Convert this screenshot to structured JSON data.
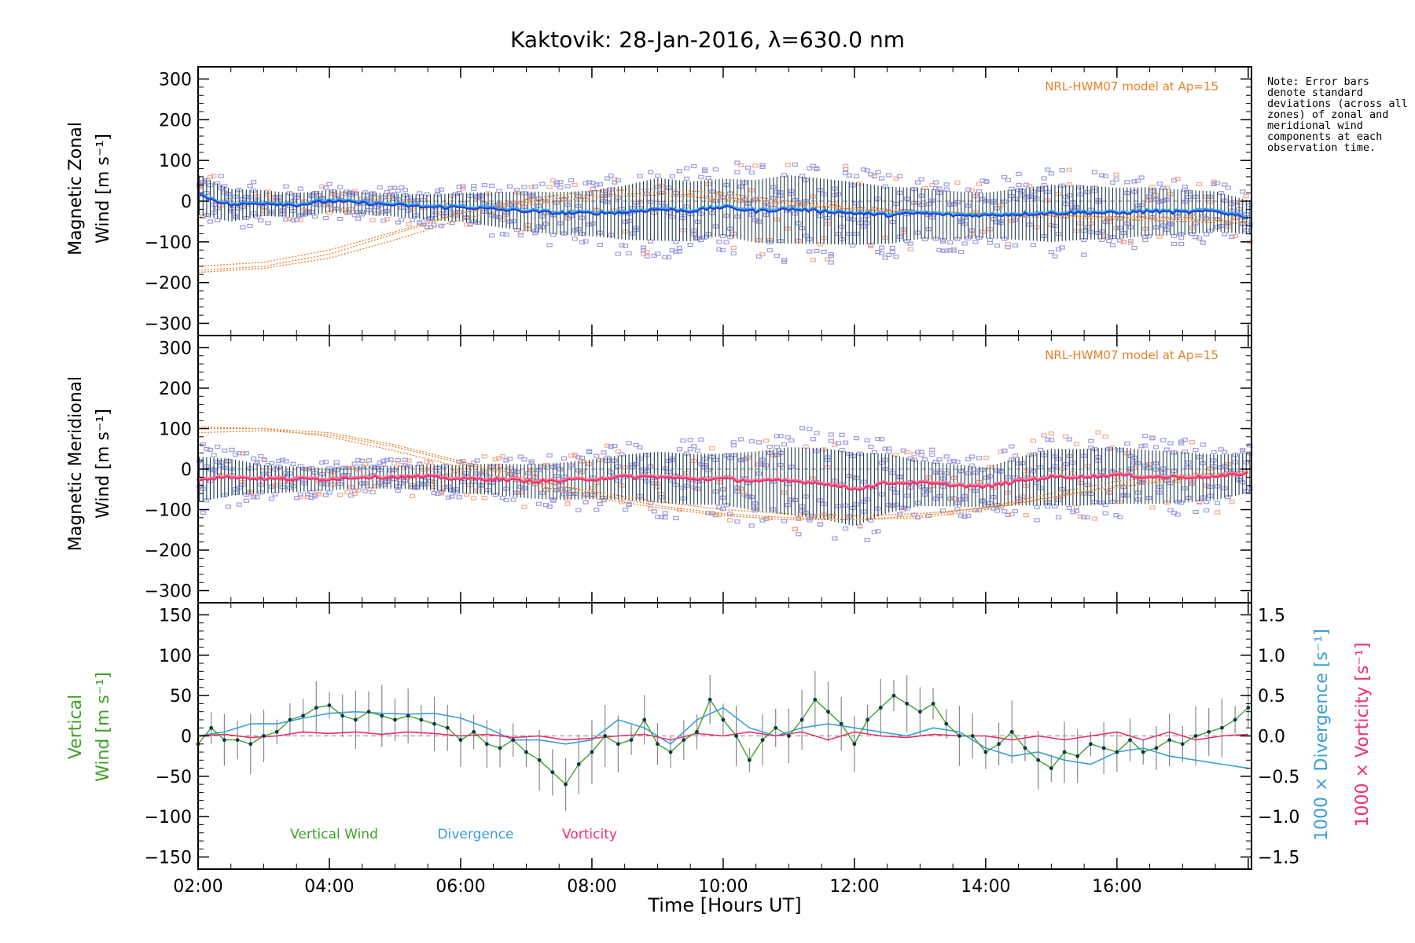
{
  "figure": {
    "title": "Kaktovik: 28-Jan-2016, λ=630.0 nm",
    "note": "Note: Error bars denote standard deviations (across all zones) of zonal and meridional wind components at each observation time."
  },
  "chart_data": [
    {
      "id": "zonal",
      "type": "scatter",
      "ylabel_line1": "Magnetic Zonal",
      "ylabel_line2": "Wind [m s⁻¹]",
      "model_label": "NRL-HWM07 model at Ap=15",
      "xlim": [
        2.0,
        18.05
      ],
      "ylim": [
        -330,
        330
      ],
      "yticks": [
        -300,
        -200,
        -100,
        0,
        100,
        200,
        300
      ],
      "colors": {
        "mean": "#1f3fd6",
        "mean_light": "#36a7e6",
        "scatter": "#9c9ce0",
        "scatter2": "#f4a98f",
        "model": "#e8802a"
      },
      "mean_series": {
        "name": "",
        "x": [
          2.0,
          2.5,
          3.0,
          3.5,
          4.0,
          4.5,
          5.0,
          5.5,
          6.0,
          6.5,
          7.0,
          7.5,
          8.0,
          8.5,
          9.0,
          9.5,
          10.0,
          10.5,
          11.0,
          11.5,
          12.0,
          12.5,
          13.0,
          13.5,
          14.0,
          14.5,
          15.0,
          15.5,
          16.0,
          16.5,
          17.0,
          17.5,
          18.0
        ],
        "y": [
          15,
          -10,
          -5,
          -10,
          0,
          -5,
          -10,
          -15,
          -15,
          -20,
          -25,
          -30,
          -30,
          -28,
          -20,
          -25,
          -15,
          -25,
          -20,
          -25,
          -30,
          -35,
          -30,
          -35,
          -35,
          -32,
          -30,
          -28,
          -30,
          -25,
          -28,
          -25,
          -40
        ]
      },
      "model_curves": [
        {
          "x": [
            2.0,
            3.0,
            4.0,
            5.0,
            6.0,
            7.0,
            8.0,
            9.0,
            10.0,
            11.0,
            12.0,
            13.0,
            14.0,
            15.0,
            16.0,
            17.0,
            18.0
          ],
          "y": [
            -170,
            -160,
            -130,
            -80,
            -30,
            5,
            25,
            30,
            20,
            0,
            -15,
            -25,
            -30,
            -35,
            -40,
            -45,
            -50
          ]
        },
        {
          "x": [
            2.0,
            3.0,
            4.0,
            5.0,
            6.0,
            7.0,
            8.0,
            9.0,
            10.0,
            11.0,
            12.0,
            13.0,
            14.0,
            15.0,
            16.0,
            17.0,
            18.0
          ],
          "y": [
            -160,
            -150,
            -120,
            -75,
            -30,
            0,
            15,
            20,
            10,
            -5,
            -20,
            -28,
            -32,
            -35,
            -38,
            -40,
            -45
          ]
        },
        {
          "x": [
            2.0,
            3.0,
            4.0,
            5.0,
            6.0,
            7.0,
            8.0,
            9.0,
            10.0,
            11.0,
            12.0,
            13.0,
            14.0,
            15.0,
            16.0,
            17.0,
            18.0
          ],
          "y": [
            -175,
            -165,
            -140,
            -95,
            -45,
            -10,
            10,
            15,
            5,
            -10,
            -20,
            -30,
            -35,
            -40,
            -45,
            -50,
            -55
          ]
        }
      ],
      "spread": [
        {
          "x": [
            2.0,
            3.0,
            4.0,
            5.0,
            6.0,
            7.0,
            8.0,
            9.0,
            10.0,
            11.0,
            12.0,
            13.0,
            14.0,
            15.0,
            16.0,
            17.0,
            18.0
          ],
          "halfwidth": [
            70,
            45,
            40,
            40,
            50,
            70,
            80,
            110,
            100,
            120,
            110,
            90,
            80,
            100,
            90,
            80,
            60
          ]
        }
      ]
    },
    {
      "id": "meridional",
      "type": "scatter",
      "ylabel_line1": "Magnetic Meridional",
      "ylabel_line2": "Wind [m s⁻¹]",
      "model_label": "NRL-HWM07 model at Ap=15",
      "xlim": [
        2.0,
        18.05
      ],
      "ylim": [
        -330,
        330
      ],
      "yticks": [
        -300,
        -200,
        -100,
        0,
        100,
        200,
        300
      ],
      "colors": {
        "mean": "#f0306a",
        "mean_light": "#ff7a9c",
        "scatter": "#9c9ce0",
        "scatter2": "#f4a98f",
        "model": "#e8802a"
      },
      "mean_series": {
        "name": "",
        "x": [
          2.0,
          2.5,
          3.0,
          3.5,
          4.0,
          4.5,
          5.0,
          5.5,
          6.0,
          6.5,
          7.0,
          7.5,
          8.0,
          8.5,
          9.0,
          9.5,
          10.0,
          10.5,
          11.0,
          11.5,
          12.0,
          12.5,
          13.0,
          13.5,
          14.0,
          14.5,
          15.0,
          15.5,
          16.0,
          16.5,
          17.0,
          17.5,
          18.0
        ],
        "y": [
          -25,
          -20,
          -25,
          -25,
          -25,
          -20,
          -20,
          -20,
          -25,
          -25,
          -30,
          -30,
          -25,
          -20,
          -20,
          -25,
          -25,
          -30,
          -30,
          -35,
          -50,
          -35,
          -35,
          -40,
          -45,
          -30,
          -20,
          -20,
          -15,
          -20,
          -20,
          -20,
          -10
        ]
      },
      "model_curves": [
        {
          "x": [
            2.0,
            3.0,
            4.0,
            5.0,
            6.0,
            7.0,
            8.0,
            9.0,
            10.0,
            11.0,
            12.0,
            13.0,
            14.0,
            15.0,
            16.0,
            17.0,
            18.0
          ],
          "y": [
            100,
            100,
            90,
            60,
            20,
            -20,
            -60,
            -90,
            -110,
            -120,
            -125,
            -120,
            -100,
            -70,
            -40,
            -20,
            -10
          ]
        },
        {
          "x": [
            2.0,
            3.0,
            4.0,
            5.0,
            6.0,
            7.0,
            8.0,
            9.0,
            10.0,
            11.0,
            12.0,
            13.0,
            14.0,
            15.0,
            16.0,
            17.0,
            18.0
          ],
          "y": [
            90,
            95,
            85,
            55,
            15,
            -25,
            -55,
            -80,
            -100,
            -110,
            -115,
            -110,
            -95,
            -70,
            -45,
            -25,
            -15
          ]
        },
        {
          "x": [
            2.0,
            3.0,
            4.0,
            5.0,
            6.0,
            7.0,
            8.0,
            9.0,
            10.0,
            11.0,
            12.0,
            13.0,
            14.0,
            15.0,
            16.0,
            17.0,
            18.0
          ],
          "y": [
            105,
            100,
            80,
            45,
            5,
            -35,
            -70,
            -95,
            -115,
            -125,
            -125,
            -115,
            -95,
            -60,
            -30,
            -15,
            -5
          ]
        }
      ],
      "spread": [
        {
          "x": [
            2.0,
            3.0,
            4.0,
            5.0,
            6.0,
            7.0,
            8.0,
            9.0,
            10.0,
            11.0,
            12.0,
            13.0,
            14.0,
            15.0,
            16.0,
            17.0,
            18.0
          ],
          "halfwidth": [
            80,
            50,
            40,
            40,
            50,
            60,
            70,
            90,
            90,
            120,
            130,
            80,
            70,
            100,
            100,
            90,
            70
          ]
        }
      ]
    },
    {
      "id": "vertical",
      "type": "line",
      "ylabel_line1": "Vertical",
      "ylabel_line2": "Wind [m s⁻¹]",
      "ylabel_right1": "1000 × Divergence [s⁻¹]",
      "ylabel_right2": "1000 × Vorticity [s⁻¹]",
      "xlabel": "Time [Hours UT]",
      "xlim": [
        2.0,
        18.05
      ],
      "ylim": [
        -165,
        165
      ],
      "yticks": [
        -150,
        -100,
        -50,
        0,
        50,
        100,
        150
      ],
      "y2lim": [
        -1.65,
        1.65
      ],
      "y2ticks": [
        -1.5,
        -1.0,
        -0.5,
        0.0,
        0.5,
        1.0,
        1.5
      ],
      "y2ticklabels": [
        "−1.5",
        "−1.0",
        "−0.5",
        "0.0",
        "0.5",
        "1.0",
        "1.5"
      ],
      "xticks": [
        2,
        4,
        6,
        8,
        10,
        12,
        14,
        16
      ],
      "xticklabels": [
        "02:00",
        "04:00",
        "06:00",
        "08:00",
        "10:00",
        "12:00",
        "14:00",
        "16:00"
      ],
      "legend": [
        "Vertical Wind",
        "Divergence",
        "Vorticity"
      ],
      "colors": {
        "vertical": "#3fa02a",
        "divergence": "#3a9fd6",
        "vorticity": "#f0306a",
        "points": "#0b3a4a"
      },
      "series": [
        {
          "name": "Vertical Wind",
          "x": [
            2.0,
            2.2,
            2.4,
            2.6,
            2.8,
            3.0,
            3.2,
            3.4,
            3.6,
            3.8,
            4.0,
            4.2,
            4.4,
            4.6,
            4.8,
            5.0,
            5.2,
            5.4,
            5.6,
            5.8,
            6.0,
            6.2,
            6.4,
            6.6,
            6.8,
            7.0,
            7.2,
            7.4,
            7.6,
            7.8,
            8.0,
            8.2,
            8.4,
            8.6,
            8.8,
            9.0,
            9.2,
            9.4,
            9.6,
            9.8,
            10.0,
            10.2,
            10.4,
            10.6,
            10.8,
            11.0,
            11.2,
            11.4,
            11.6,
            11.8,
            12.0,
            12.2,
            12.4,
            12.6,
            12.8,
            13.0,
            13.2,
            13.4,
            13.6,
            13.8,
            14.0,
            14.2,
            14.4,
            14.6,
            14.8,
            15.0,
            15.2,
            15.4,
            15.6,
            15.8,
            16.0,
            16.2,
            16.4,
            16.6,
            16.8,
            17.0,
            17.2,
            17.4,
            17.6,
            17.8,
            18.0
          ],
          "y": [
            -10,
            10,
            -5,
            -5,
            -10,
            0,
            5,
            20,
            25,
            35,
            38,
            25,
            20,
            30,
            25,
            20,
            25,
            20,
            15,
            10,
            -5,
            5,
            -10,
            -15,
            -5,
            -20,
            -30,
            -45,
            -60,
            -35,
            -20,
            0,
            -10,
            -5,
            20,
            -10,
            -20,
            -5,
            5,
            45,
            20,
            0,
            -30,
            -5,
            10,
            0,
            20,
            45,
            30,
            15,
            -10,
            20,
            35,
            50,
            40,
            30,
            40,
            15,
            0,
            0,
            -20,
            -10,
            5,
            -15,
            -30,
            -40,
            -20,
            -25,
            -10,
            -15,
            -20,
            -5,
            -20,
            -15,
            -5,
            -10,
            0,
            5,
            10,
            20,
            35
          ]
        },
        {
          "name": "Divergence",
          "x": [
            2.0,
            2.4,
            2.8,
            3.2,
            3.6,
            4.0,
            4.4,
            4.8,
            5.2,
            5.6,
            6.0,
            6.4,
            6.8,
            7.2,
            7.6,
            8.0,
            8.4,
            8.8,
            9.2,
            9.6,
            10.0,
            10.4,
            10.8,
            11.2,
            11.6,
            12.0,
            12.4,
            12.8,
            13.2,
            13.6,
            14.0,
            14.4,
            14.8,
            15.2,
            15.6,
            16.0,
            16.4,
            16.8,
            17.2,
            17.6,
            18.0
          ],
          "y": [
            0.0,
            0.05,
            0.15,
            0.15,
            0.22,
            0.28,
            0.3,
            0.28,
            0.27,
            0.28,
            0.22,
            0.1,
            -0.05,
            -0.05,
            -0.1,
            -0.05,
            0.2,
            0.1,
            -0.1,
            0.2,
            0.35,
            0.1,
            0.0,
            0.1,
            0.15,
            0.1,
            0.05,
            0.0,
            0.1,
            0.05,
            -0.15,
            -0.25,
            -0.2,
            -0.3,
            -0.35,
            -0.2,
            -0.15,
            -0.25,
            -0.3,
            -0.35,
            -0.4
          ]
        },
        {
          "name": "Vorticity",
          "x": [
            2.0,
            2.4,
            2.8,
            3.2,
            3.6,
            4.0,
            4.4,
            4.8,
            5.2,
            5.6,
            6.0,
            6.4,
            6.8,
            7.2,
            7.6,
            8.0,
            8.4,
            8.8,
            9.2,
            9.6,
            10.0,
            10.4,
            10.8,
            11.2,
            11.6,
            12.0,
            12.4,
            12.8,
            13.2,
            13.6,
            14.0,
            14.4,
            14.8,
            15.2,
            15.6,
            16.0,
            16.4,
            16.8,
            17.2,
            17.6,
            18.0
          ],
          "y": [
            0.0,
            0.02,
            -0.02,
            0.0,
            0.05,
            0.03,
            0.05,
            0.02,
            0.05,
            0.03,
            0.0,
            0.02,
            -0.02,
            0.0,
            -0.05,
            -0.03,
            0.0,
            0.02,
            -0.05,
            0.03,
            0.0,
            0.05,
            0.0,
            0.05,
            -0.05,
            0.05,
            0.0,
            -0.02,
            0.02,
            0.0,
            0.0,
            -0.05,
            0.0,
            -0.05,
            0.0,
            0.05,
            -0.05,
            0.05,
            -0.05,
            0.0,
            0.02
          ]
        }
      ]
    }
  ]
}
